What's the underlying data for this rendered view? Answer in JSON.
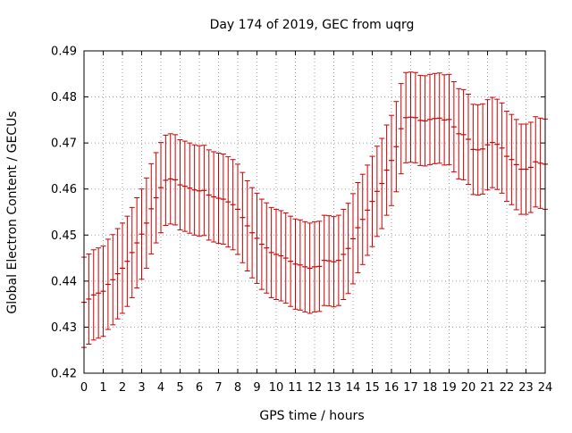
{
  "chart_data": {
    "type": "scatter",
    "title": "Day 174 of 2019, GEC from uqrg",
    "xlabel": "GPS time / hours",
    "ylabel": "Global Electron Content / GECUs",
    "xlim": [
      0,
      24
    ],
    "ylim": [
      0.42,
      0.49
    ],
    "x_ticks": [
      0,
      1,
      2,
      3,
      4,
      5,
      6,
      7,
      8,
      9,
      10,
      11,
      12,
      13,
      14,
      15,
      16,
      17,
      18,
      19,
      20,
      21,
      22,
      23,
      24
    ],
    "y_ticks": [
      0.42,
      0.43,
      0.44,
      0.45,
      0.46,
      0.47,
      0.48,
      0.49
    ],
    "x_tick_labels": [
      "0",
      "1",
      "2",
      "3",
      "4",
      "5",
      "6",
      "7",
      "8",
      "9",
      "10",
      "11",
      "12",
      "13",
      "14",
      "15",
      "16",
      "17",
      "18",
      "19",
      "20",
      "21",
      "22",
      "23",
      "24"
    ],
    "y_tick_labels": [
      "0.42",
      "0.43",
      "0.44",
      "0.45",
      "0.46",
      "0.47",
      "0.48",
      "0.49"
    ],
    "grid": true,
    "legend": "none",
    "series_color": "#cc0000",
    "series": [
      {
        "x": [
          0,
          0.25,
          0.5,
          0.75,
          1,
          1.25,
          1.5,
          1.75,
          2,
          2.25,
          2.5,
          2.75,
          3,
          3.25,
          3.5,
          3.75,
          4,
          4.25,
          4.5,
          4.75,
          5,
          5.25,
          5.5,
          5.75,
          6,
          6.25,
          6.5,
          6.75,
          7,
          7.25,
          7.5,
          7.75,
          8,
          8.25,
          8.5,
          8.75,
          9,
          9.25,
          9.5,
          9.75,
          10,
          10.25,
          10.5,
          10.75,
          11,
          11.25,
          11.5,
          11.75,
          12,
          12.25,
          12.5,
          12.75,
          13,
          13.25,
          13.5,
          13.75,
          14,
          14.25,
          14.5,
          14.75,
          15,
          15.25,
          15.5,
          15.75,
          16,
          16.25,
          16.5,
          16.75,
          17,
          17.25,
          17.5,
          17.75,
          18,
          18.25,
          18.5,
          18.75,
          19,
          19.25,
          19.5,
          19.75,
          20,
          20.25,
          20.5,
          20.75,
          21,
          21.25,
          21.5,
          21.75,
          22,
          22.25,
          22.5,
          22.75,
          23,
          23.25,
          23.5,
          23.75,
          24
        ],
        "y": [
          0.4354,
          0.4361,
          0.437,
          0.4374,
          0.4378,
          0.4393,
          0.4403,
          0.4416,
          0.4428,
          0.4443,
          0.4462,
          0.4483,
          0.4502,
          0.4526,
          0.4557,
          0.4581,
          0.4603,
          0.4619,
          0.4622,
          0.462,
          0.4609,
          0.4606,
          0.4602,
          0.4598,
          0.4596,
          0.4597,
          0.4587,
          0.4583,
          0.458,
          0.4578,
          0.4572,
          0.4566,
          0.4556,
          0.4538,
          0.452,
          0.4505,
          0.4493,
          0.448,
          0.4472,
          0.4462,
          0.4458,
          0.4455,
          0.445,
          0.4443,
          0.4437,
          0.4435,
          0.4431,
          0.4428,
          0.4431,
          0.4432,
          0.4445,
          0.4444,
          0.4442,
          0.4445,
          0.4458,
          0.4471,
          0.4492,
          0.4516,
          0.4534,
          0.4554,
          0.4573,
          0.4595,
          0.4612,
          0.4641,
          0.4662,
          0.4692,
          0.4731,
          0.4755,
          0.4756,
          0.4755,
          0.4749,
          0.4748,
          0.4751,
          0.4753,
          0.4754,
          0.475,
          0.4751,
          0.4735,
          0.472,
          0.4718,
          0.4708,
          0.4686,
          0.4685,
          0.4687,
          0.4696,
          0.4701,
          0.4697,
          0.4689,
          0.4671,
          0.4664,
          0.4653,
          0.4643,
          0.4643,
          0.4647,
          0.4659,
          0.4656,
          0.4654
        ],
        "err": [
          0.0098,
          0.0098,
          0.0098,
          0.0098,
          0.0098,
          0.0098,
          0.0098,
          0.0098,
          0.0098,
          0.0098,
          0.0098,
          0.0098,
          0.0098,
          0.0098,
          0.0098,
          0.0098,
          0.0098,
          0.0098,
          0.0098,
          0.0098,
          0.0098,
          0.0098,
          0.0098,
          0.0098,
          0.0098,
          0.0098,
          0.0098,
          0.0098,
          0.0098,
          0.0098,
          0.0098,
          0.0098,
          0.0098,
          0.0098,
          0.0098,
          0.0098,
          0.0098,
          0.0098,
          0.0098,
          0.0098,
          0.0098,
          0.0098,
          0.0098,
          0.0098,
          0.0098,
          0.0098,
          0.0098,
          0.0098,
          0.0098,
          0.0098,
          0.0098,
          0.0098,
          0.0098,
          0.0098,
          0.0098,
          0.0098,
          0.0098,
          0.0098,
          0.0098,
          0.0098,
          0.0098,
          0.0098,
          0.0098,
          0.0098,
          0.0098,
          0.0098,
          0.0098,
          0.0098,
          0.0098,
          0.0098,
          0.0098,
          0.0098,
          0.0098,
          0.0098,
          0.0098,
          0.0098,
          0.0098,
          0.0098,
          0.0098,
          0.0098,
          0.0098,
          0.0098,
          0.0098,
          0.0098,
          0.0098,
          0.0098,
          0.0098,
          0.0098,
          0.0098,
          0.0098,
          0.0098,
          0.0098,
          0.0098,
          0.0098,
          0.0098,
          0.0098,
          0.0098
        ]
      }
    ]
  }
}
